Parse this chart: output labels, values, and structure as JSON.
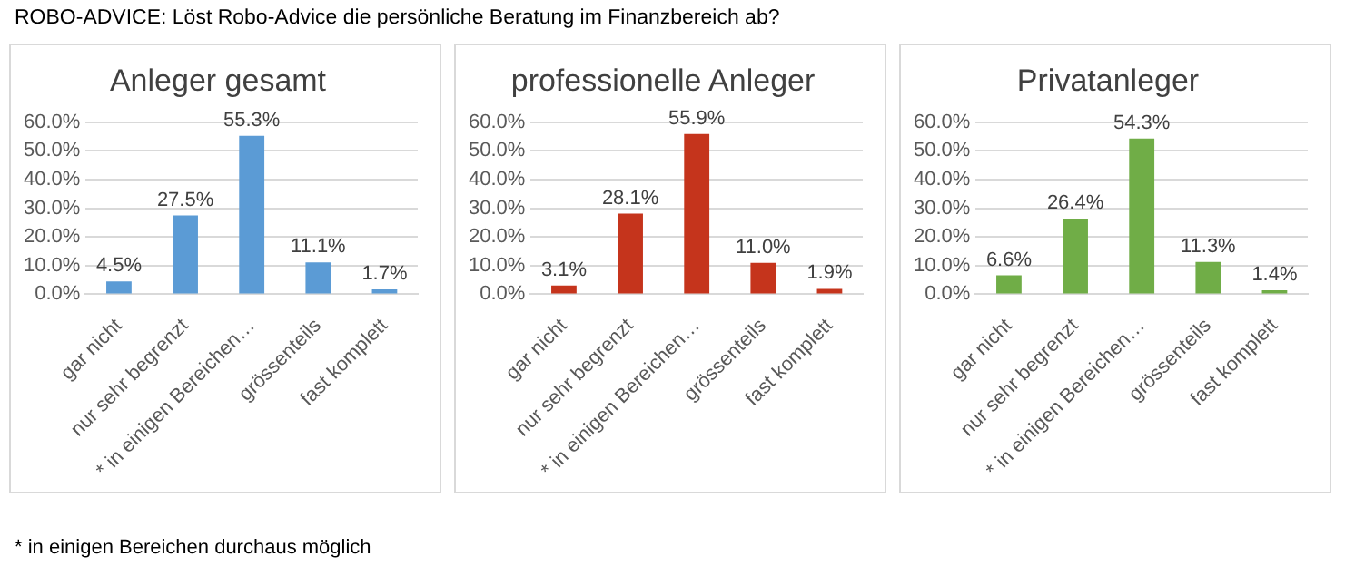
{
  "chart_data": [
    {
      "type": "bar",
      "title": "Anleger gesamt",
      "annotations": [
        "ROBO-ADVICE: Löst Robo-Advice die persönliche Beratung im Finanzbereich ab?",
        "* in einigen Bereichen durchaus möglich"
      ],
      "categories": [
        "gar nicht",
        "nur sehr begrenzt",
        "* in einigen Bereichen…",
        "grössenteils",
        "fast komplett"
      ],
      "values": [
        4.5,
        27.5,
        55.3,
        11.1,
        1.7
      ],
      "value_labels": [
        "4.5%",
        "27.5%",
        "55.3%",
        "11.1%",
        "1.7%"
      ],
      "color": "#5b9bd5",
      "ylim": [
        0,
        60
      ],
      "yticks": [
        {
          "value": 0,
          "label": "0.0%"
        },
        {
          "value": 10,
          "label": "10.0%"
        },
        {
          "value": 20,
          "label": "20.0%"
        },
        {
          "value": 30,
          "label": "30.0%"
        },
        {
          "value": 40,
          "label": "40.0%"
        },
        {
          "value": 50,
          "label": "50.0%"
        },
        {
          "value": 60,
          "label": "60.0%"
        }
      ],
      "grid": "y"
    },
    {
      "type": "bar",
      "title": "professionelle Anleger",
      "categories": [
        "gar nicht",
        "nur sehr begrenzt",
        "* in einigen Bereichen…",
        "grössenteils",
        "fast komplett"
      ],
      "values": [
        3.1,
        28.1,
        55.9,
        11.0,
        1.9
      ],
      "value_labels": [
        "3.1%",
        "28.1%",
        "55.9%",
        "11.0%",
        "1.9%"
      ],
      "color": "#c5341c",
      "ylim": [
        0,
        60
      ],
      "yticks": [
        {
          "value": 0,
          "label": "0.0%"
        },
        {
          "value": 10,
          "label": "10.0%"
        },
        {
          "value": 20,
          "label": "20.0%"
        },
        {
          "value": 30,
          "label": "30.0%"
        },
        {
          "value": 40,
          "label": "40.0%"
        },
        {
          "value": 50,
          "label": "50.0%"
        },
        {
          "value": 60,
          "label": "60.0%"
        }
      ],
      "grid": "y"
    },
    {
      "type": "bar",
      "title": "Privatanleger",
      "categories": [
        "gar nicht",
        "nur sehr begrenzt",
        "* in einigen Bereichen…",
        "grössenteils",
        "fast komplett"
      ],
      "values": [
        6.6,
        26.4,
        54.3,
        11.3,
        1.4
      ],
      "value_labels": [
        "6.6%",
        "26.4%",
        "54.3%",
        "11.3%",
        "1.4%"
      ],
      "color": "#70ad47",
      "ylim": [
        0,
        60
      ],
      "yticks": [
        {
          "value": 0,
          "label": "0.0%"
        },
        {
          "value": 10,
          "label": "10.0%"
        },
        {
          "value": 20,
          "label": "20.0%"
        },
        {
          "value": 30,
          "label": "30.0%"
        },
        {
          "value": 40,
          "label": "40.0%"
        },
        {
          "value": 50,
          "label": "50.0%"
        },
        {
          "value": 60,
          "label": "60.0%"
        }
      ],
      "grid": "y"
    }
  ]
}
